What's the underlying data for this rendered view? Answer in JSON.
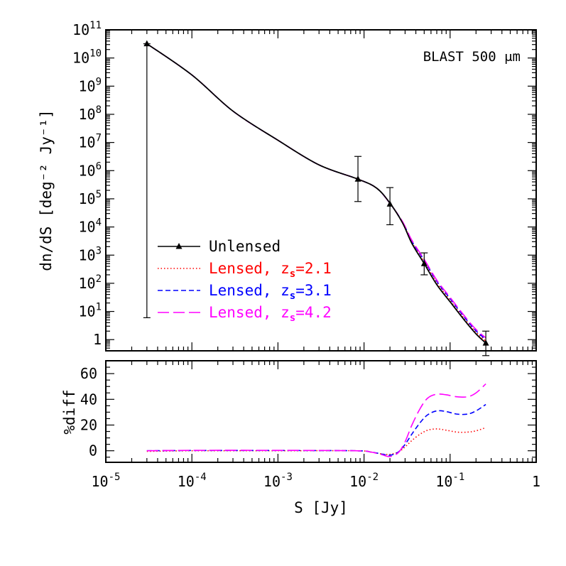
{
  "chart_data": [
    {
      "type": "line",
      "panel": "top",
      "annotation": "BLAST 500 μm",
      "xlabel": "",
      "ylabel": "dn/dS [deg⁻² Jy⁻¹]",
      "xscale": "log",
      "yscale": "log",
      "xlim": [
        1e-05,
        1
      ],
      "ylim": [
        0.4,
        100000000000.0
      ],
      "x_ticks": [
        {
          "value": 1e-05,
          "label": "10⁻⁵"
        },
        {
          "value": 0.0001,
          "label": "10⁻⁴"
        },
        {
          "value": 0.001,
          "label": "10⁻³"
        },
        {
          "value": 0.01,
          "label": "10⁻²"
        },
        {
          "value": 0.1,
          "label": "10⁻¹"
        },
        {
          "value": 1,
          "label": "1"
        }
      ],
      "y_ticks": [
        {
          "value": 1,
          "label": "1"
        },
        {
          "value": 10,
          "label": "10¹"
        },
        {
          "value": 100,
          "label": "10²"
        },
        {
          "value": 1000,
          "label": "10³"
        },
        {
          "value": 10000,
          "label": "10⁴"
        },
        {
          "value": 100000,
          "label": "10⁵"
        },
        {
          "value": 1000000,
          "label": "10⁶"
        },
        {
          "value": 10000000,
          "label": "10⁷"
        },
        {
          "value": 100000000,
          "label": "10⁸"
        },
        {
          "value": 1000000000,
          "label": "10⁹"
        },
        {
          "value": 10000000000,
          "label": "10¹⁰"
        },
        {
          "value": 100000000000,
          "label": "10¹¹"
        }
      ],
      "legend_position": "lower-left",
      "series": [
        {
          "name": "Unlensed",
          "color": "#000000",
          "dash": "solid",
          "marker": "triangle",
          "x": [
            3e-05,
            0.0001,
            0.0003,
            0.001,
            0.003,
            0.0085,
            0.014,
            0.02,
            0.028,
            0.036,
            0.05,
            0.07,
            0.1,
            0.15,
            0.2,
            0.26
          ],
          "y": [
            32000000000.0,
            2500000000.0,
            130000000.0,
            12000000.0,
            1600000.0,
            500000.0,
            240000.0,
            70000.0,
            14000.0,
            2600.0,
            500.0,
            90.0,
            22.0,
            4.5,
            1.6,
            0.75
          ]
        },
        {
          "name": "Lensed, z_s=2.1",
          "color": "#ff0000",
          "dash": "dotted",
          "x": [
            3e-05,
            0.0001,
            0.0003,
            0.001,
            0.003,
            0.0085,
            0.014,
            0.02,
            0.028,
            0.036,
            0.05,
            0.07,
            0.1,
            0.15,
            0.2,
            0.26
          ],
          "y": [
            32000000000.0,
            2500000000.0,
            130000000.0,
            12000000.0,
            1600000.0,
            500000.0,
            240000.0,
            69000.0,
            14500.0,
            2850.0,
            580.0,
            105.0,
            25.0,
            5.1,
            1.85,
            0.88
          ]
        },
        {
          "name": "Lensed, z_s=3.1",
          "color": "#0000ff",
          "dash": "dashed",
          "x": [
            3e-05,
            0.0001,
            0.0003,
            0.001,
            0.003,
            0.0085,
            0.014,
            0.02,
            0.028,
            0.036,
            0.05,
            0.07,
            0.1,
            0.15,
            0.2,
            0.26
          ],
          "y": [
            32000000000.0,
            2500000000.0,
            130000000.0,
            12000000.0,
            1600000.0,
            500000.0,
            240000.0,
            69000.0,
            15000.0,
            3100.0,
            650.0,
            118.0,
            28.5,
            5.75,
            2.05,
            1.02
          ]
        },
        {
          "name": "Lensed, z_s=4.2",
          "color": "#ff00ff",
          "dash": "long-dashed",
          "x": [
            3e-05,
            0.0001,
            0.0003,
            0.001,
            0.003,
            0.0085,
            0.014,
            0.02,
            0.028,
            0.036,
            0.05,
            0.07,
            0.1,
            0.15,
            0.2,
            0.26
          ],
          "y": [
            32000000000.0,
            2500000000.0,
            130000000.0,
            12000000.0,
            1600000.0,
            500000.0,
            240000.0,
            69000.0,
            15500.0,
            3350.0,
            710.0,
            130.0,
            31.5,
            6.4,
            2.3,
            1.15
          ]
        }
      ],
      "data_points": [
        {
          "x": 3e-05,
          "y": 32000000000.0,
          "y_low": 6.0,
          "y_high": 32000000000.0
        },
        {
          "x": 0.0085,
          "y": 500000.0,
          "y_low": 80000.0,
          "y_high": 3200000.0
        },
        {
          "x": 0.02,
          "y": 65000.0,
          "y_low": 12000.0,
          "y_high": 250000.0
        },
        {
          "x": 0.05,
          "y": 500.0,
          "y_low": 200.0,
          "y_high": 1200.0
        },
        {
          "x": 0.26,
          "y": 0.75,
          "y_low": 0.27,
          "y_high": 2.0
        }
      ]
    },
    {
      "type": "line",
      "panel": "bottom",
      "xlabel": "S [Jy]",
      "ylabel": "%diff",
      "xscale": "log",
      "xlim": [
        1e-05,
        1
      ],
      "ylim": [
        -9,
        70
      ],
      "y_ticks": [
        {
          "value": 0,
          "label": "0"
        },
        {
          "value": 20,
          "label": "20"
        },
        {
          "value": 40,
          "label": "40"
        },
        {
          "value": 60,
          "label": "60"
        }
      ],
      "series": [
        {
          "name": "Lensed, z_s=2.1",
          "color": "#ff0000",
          "dash": "dotted",
          "x": [
            3e-05,
            0.0001,
            0.001,
            0.008,
            0.012,
            0.016,
            0.02,
            0.025,
            0.03,
            0.036,
            0.045,
            0.055,
            0.07,
            0.09,
            0.12,
            0.16,
            0.2,
            0.26
          ],
          "y": [
            -0.5,
            0,
            0,
            0,
            -1,
            -2.5,
            -2.8,
            -1,
            3,
            8,
            13,
            16,
            17,
            16,
            14.5,
            14.5,
            15.5,
            18
          ]
        },
        {
          "name": "Lensed, z_s=3.1",
          "color": "#0000ff",
          "dash": "dashed",
          "x": [
            3e-05,
            0.0001,
            0.001,
            0.008,
            0.012,
            0.016,
            0.02,
            0.025,
            0.03,
            0.036,
            0.045,
            0.055,
            0.07,
            0.09,
            0.12,
            0.16,
            0.2,
            0.26
          ],
          "y": [
            0,
            0.2,
            0.2,
            0,
            -1,
            -2.5,
            -3.5,
            -1,
            5,
            13,
            22,
            28,
            31,
            30.5,
            28.5,
            28.5,
            31,
            36
          ]
        },
        {
          "name": "Lensed, z_s=4.2",
          "color": "#ff00ff",
          "dash": "long-dashed",
          "x": [
            3e-05,
            0.0001,
            0.001,
            0.008,
            0.012,
            0.016,
            0.02,
            0.025,
            0.03,
            0.036,
            0.045,
            0.055,
            0.07,
            0.09,
            0.12,
            0.16,
            0.2,
            0.26
          ],
          "y": [
            0,
            0.3,
            0.3,
            0,
            -1,
            -3,
            -4.5,
            -1.5,
            7,
            20,
            33,
            41,
            44,
            43.5,
            42,
            42,
            45,
            52
          ]
        }
      ]
    }
  ]
}
